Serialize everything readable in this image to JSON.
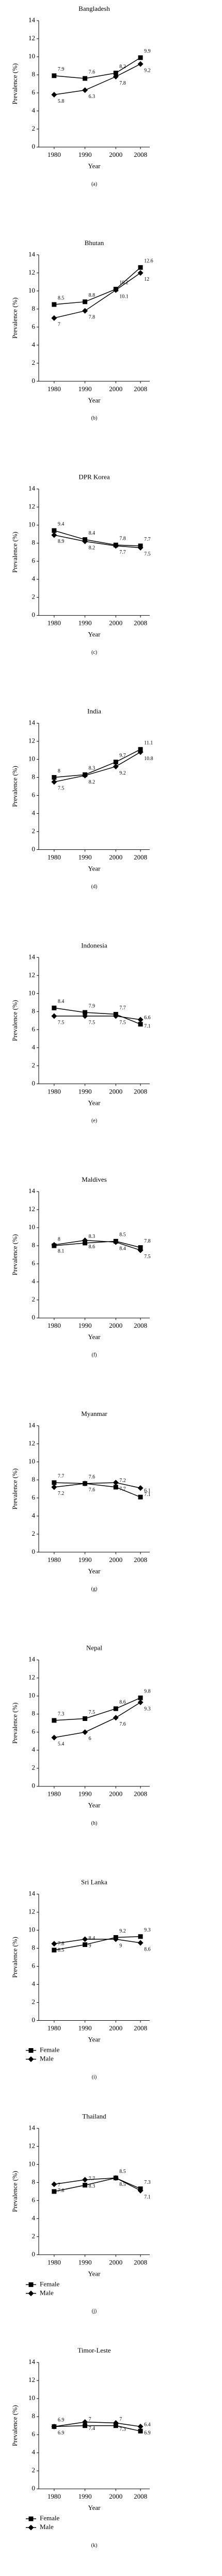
{
  "chart_data": [
    {
      "type": "line",
      "title": "Bangladesh",
      "caption": "(a)",
      "x_label": "Year",
      "y_label": "Prevalence (%)",
      "x": [
        1980,
        1990,
        2000,
        2008
      ],
      "xlim": [
        1975,
        2011
      ],
      "xticks": [
        1980,
        1990,
        2000,
        2008
      ],
      "ylim": [
        0,
        14
      ],
      "yticks": [
        0,
        2,
        4,
        6,
        8,
        10,
        12,
        14
      ],
      "legend": false,
      "series": [
        {
          "marker": "square",
          "color": "#000000",
          "values": [
            7.9,
            7.6,
            8.2,
            9.9
          ]
        },
        {
          "marker": "diamond",
          "color": "#000000",
          "values": [
            5.8,
            6.3,
            7.8,
            9.2
          ]
        }
      ]
    },
    {
      "type": "line",
      "title": "Bhutan",
      "caption": "(b)",
      "x_label": "Year",
      "y_label": "Prevalence (%)",
      "x": [
        1980,
        1990,
        2000,
        2008
      ],
      "xlim": [
        1975,
        2011
      ],
      "xticks": [
        1980,
        1990,
        2000,
        2008
      ],
      "ylim": [
        0,
        14
      ],
      "yticks": [
        0,
        2,
        4,
        6,
        8,
        10,
        12,
        14
      ],
      "legend": false,
      "series": [
        {
          "marker": "square",
          "color": "#000000",
          "values": [
            8.5,
            8.8,
            10.2,
            12.6
          ]
        },
        {
          "marker": "diamond",
          "color": "#000000",
          "values": [
            7,
            7.8,
            10.1,
            12
          ]
        }
      ]
    },
    {
      "type": "line",
      "title": "DPR Korea",
      "caption": "(c)",
      "x_label": "Year",
      "y_label": "Prevalence (%)",
      "x": [
        1980,
        1990,
        2000,
        2008
      ],
      "xlim": [
        1975,
        2011
      ],
      "xticks": [
        1980,
        1990,
        2000,
        2008
      ],
      "ylim": [
        0,
        14
      ],
      "yticks": [
        0,
        2,
        4,
        6,
        8,
        10,
        12,
        14
      ],
      "legend": false,
      "series": [
        {
          "marker": "square",
          "color": "#000000",
          "values": [
            9.4,
            8.4,
            7.8,
            7.7
          ]
        },
        {
          "marker": "diamond",
          "color": "#000000",
          "values": [
            8.9,
            8.2,
            7.7,
            7.5
          ]
        }
      ]
    },
    {
      "type": "line",
      "title": "India",
      "caption": "(d)",
      "x_label": "Year",
      "y_label": "Prevalence (%)",
      "x": [
        1980,
        1990,
        2000,
        2008
      ],
      "xlim": [
        1975,
        2011
      ],
      "xticks": [
        1980,
        1990,
        2000,
        2008
      ],
      "ylim": [
        0,
        14
      ],
      "yticks": [
        0,
        2,
        4,
        6,
        8,
        10,
        12,
        14
      ],
      "legend": false,
      "series": [
        {
          "marker": "square",
          "color": "#000000",
          "values": [
            8,
            8.3,
            9.7,
            11.1
          ]
        },
        {
          "marker": "diamond",
          "color": "#000000",
          "values": [
            7.5,
            8.2,
            9.2,
            10.8
          ]
        }
      ]
    },
    {
      "type": "line",
      "title": "Indonesia",
      "caption": "(e)",
      "x_label": "Year",
      "y_label": "Prevalence (%)",
      "x": [
        1980,
        1990,
        2000,
        2008
      ],
      "xlim": [
        1975,
        2011
      ],
      "xticks": [
        1980,
        1990,
        2000,
        2008
      ],
      "ylim": [
        0,
        14
      ],
      "yticks": [
        0,
        2,
        4,
        6,
        8,
        10,
        12,
        14
      ],
      "legend": false,
      "series": [
        {
          "marker": "square",
          "color": "#000000",
          "values": [
            8.4,
            7.9,
            7.7,
            6.6
          ]
        },
        {
          "marker": "diamond",
          "color": "#000000",
          "values": [
            7.5,
            7.5,
            7.5,
            7.1
          ]
        }
      ]
    },
    {
      "type": "line",
      "title": "Maldives",
      "caption": "(f)",
      "x_label": "Year",
      "y_label": "Prevalence (%)",
      "x": [
        1980,
        1990,
        2000,
        2008
      ],
      "xlim": [
        1975,
        2011
      ],
      "xticks": [
        1980,
        1990,
        2000,
        2008
      ],
      "ylim": [
        0,
        14
      ],
      "yticks": [
        0,
        2,
        4,
        6,
        8,
        10,
        12,
        14
      ],
      "legend": false,
      "series": [
        {
          "marker": "square",
          "color": "#000000",
          "values": [
            8,
            8.3,
            8.5,
            7.8
          ]
        },
        {
          "marker": "diamond",
          "color": "#000000",
          "values": [
            8.1,
            8.6,
            8.4,
            7.5
          ]
        }
      ]
    },
    {
      "type": "line",
      "title": "Myanmar",
      "caption": "(g)",
      "x_label": "Year",
      "y_label": "Prevalence (%)",
      "x": [
        1980,
        1990,
        2000,
        2008
      ],
      "xlim": [
        1975,
        2011
      ],
      "xticks": [
        1980,
        1990,
        2000,
        2008
      ],
      "ylim": [
        0,
        14
      ],
      "yticks": [
        0,
        2,
        4,
        6,
        8,
        10,
        12,
        14
      ],
      "legend": false,
      "series": [
        {
          "marker": "square",
          "color": "#000000",
          "values": [
            7.7,
            7.6,
            7.2,
            6.1
          ]
        },
        {
          "marker": "diamond",
          "color": "#000000",
          "values": [
            7.2,
            7.6,
            7.7,
            7.1
          ]
        }
      ]
    },
    {
      "type": "line",
      "title": "Nepal",
      "caption": "(h)",
      "x_label": "Year",
      "y_label": "Prevalence (%)",
      "x": [
        1980,
        1990,
        2000,
        2008
      ],
      "xlim": [
        1975,
        2011
      ],
      "xticks": [
        1980,
        1990,
        2000,
        2008
      ],
      "ylim": [
        0,
        14
      ],
      "yticks": [
        0,
        2,
        4,
        6,
        8,
        10,
        12,
        14
      ],
      "legend": false,
      "series": [
        {
          "marker": "square",
          "color": "#000000",
          "values": [
            7.3,
            7.5,
            8.6,
            9.8
          ]
        },
        {
          "marker": "diamond",
          "color": "#000000",
          "values": [
            5.4,
            6,
            7.6,
            9.3
          ]
        }
      ]
    },
    {
      "type": "line",
      "title": "Sri Lanka",
      "caption": "(i)",
      "x_label": "Year",
      "y_label": "Prevalence (%)",
      "x": [
        1980,
        1990,
        2000,
        2008
      ],
      "xlim": [
        1975,
        2011
      ],
      "xticks": [
        1980,
        1990,
        2000,
        2008
      ],
      "ylim": [
        0,
        14
      ],
      "yticks": [
        0,
        2,
        4,
        6,
        8,
        10,
        12,
        14
      ],
      "legend": true,
      "series": [
        {
          "name": "Female",
          "marker": "square",
          "color": "#000000",
          "values": [
            7.8,
            8.4,
            9.2,
            9.3
          ]
        },
        {
          "name": "Male",
          "marker": "diamond",
          "color": "#000000",
          "values": [
            8.5,
            9,
            9,
            8.6
          ]
        }
      ]
    },
    {
      "type": "line",
      "title": "Thailand",
      "caption": "(j)",
      "x_label": "Year",
      "y_label": "Prevalence (%)",
      "x": [
        1980,
        1990,
        2000,
        2008
      ],
      "xlim": [
        1975,
        2011
      ],
      "xticks": [
        1980,
        1990,
        2000,
        2008
      ],
      "ylim": [
        0,
        14
      ],
      "yticks": [
        0,
        2,
        4,
        6,
        8,
        10,
        12,
        14
      ],
      "legend": true,
      "series": [
        {
          "name": "Female",
          "marker": "square",
          "color": "#000000",
          "values": [
            7,
            7.7,
            8.5,
            7.3
          ]
        },
        {
          "name": "Male",
          "marker": "diamond",
          "color": "#000000",
          "values": [
            7.8,
            8.3,
            8.5,
            7.1
          ]
        }
      ]
    },
    {
      "type": "line",
      "title": "Timor-Leste",
      "caption": "(k)",
      "x_label": "Year",
      "y_label": "Prevalence (%)",
      "x": [
        1980,
        1990,
        2000,
        2008
      ],
      "xlim": [
        1975,
        2011
      ],
      "xticks": [
        1980,
        1990,
        2000,
        2008
      ],
      "ylim": [
        0,
        14
      ],
      "yticks": [
        0,
        2,
        4,
        6,
        8,
        10,
        12,
        14
      ],
      "legend": true,
      "series": [
        {
          "name": "Female",
          "marker": "square",
          "color": "#000000",
          "values": [
            6.9,
            7,
            7,
            6.4
          ]
        },
        {
          "name": "Male",
          "marker": "diamond",
          "color": "#000000",
          "values": [
            6.9,
            7.4,
            7.3,
            6.9
          ]
        }
      ]
    }
  ]
}
